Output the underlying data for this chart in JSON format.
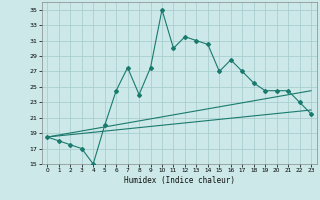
{
  "xlabel": "Humidex (Indice chaleur)",
  "ylabel": "",
  "background_color": "#cce8e8",
  "grid_color": "#aacece",
  "line_color": "#1a7a6e",
  "xlim": [
    -0.5,
    23.5
  ],
  "ylim": [
    15,
    36
  ],
  "yticks": [
    15,
    17,
    19,
    21,
    23,
    25,
    27,
    29,
    31,
    33,
    35
  ],
  "xticks": [
    0,
    1,
    2,
    3,
    4,
    5,
    6,
    7,
    8,
    9,
    10,
    11,
    12,
    13,
    14,
    15,
    16,
    17,
    18,
    19,
    20,
    21,
    22,
    23
  ],
  "humidex_x": [
    0,
    1,
    2,
    3,
    4,
    5,
    6,
    7,
    8,
    9,
    10,
    11,
    12,
    13,
    14,
    15,
    16,
    17,
    18,
    19,
    20,
    21,
    22,
    23
  ],
  "humidex_y": [
    18.5,
    18.0,
    17.5,
    17.0,
    15.0,
    20.0,
    24.5,
    27.5,
    24.0,
    27.5,
    35.0,
    30.0,
    31.5,
    31.0,
    30.5,
    27.0,
    28.5,
    27.0,
    25.5,
    24.5,
    24.5,
    24.5,
    23.0,
    21.5
  ],
  "line1_x": [
    0,
    23
  ],
  "line1_y": [
    18.5,
    22.0
  ],
  "line2_x": [
    0,
    23
  ],
  "line2_y": [
    18.5,
    24.5
  ]
}
